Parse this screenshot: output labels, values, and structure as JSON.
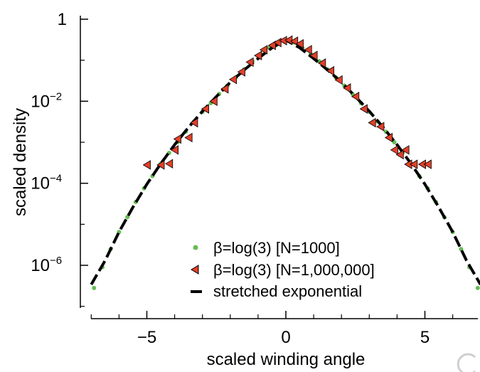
{
  "chart_data": {
    "type": "scatter",
    "title": "",
    "xlabel": "scaled winding angle",
    "ylabel": "scaled density",
    "xlim": [
      -7,
      7
    ],
    "ylim": [
      1e-07,
      1
    ],
    "y_scale": "log",
    "x_ticks": [
      {
        "value": -5,
        "label": "−5"
      },
      {
        "value": 0,
        "label": "0"
      },
      {
        "value": 5,
        "label": "5"
      }
    ],
    "y_ticks": [
      {
        "value": 1,
        "base": "1",
        "exp": ""
      },
      {
        "value": 0.01,
        "base": "10",
        "exp": "−2"
      },
      {
        "value": 0.0001,
        "base": "10",
        "exp": "−4"
      },
      {
        "value": 1e-06,
        "base": "10",
        "exp": "−6"
      }
    ],
    "grid": false,
    "legend_position": "bottom-right",
    "series": [
      {
        "name": "β=log(3) [N=1000]",
        "marker": "dot",
        "color": "#66bb55",
        "points": [
          [
            -6.9,
            2.8e-07
          ],
          [
            -6.6,
            9e-07
          ],
          [
            -6.3,
            2.5e-06
          ],
          [
            -6.0,
            6.5e-06
          ],
          [
            -5.7,
            1.5e-05
          ],
          [
            -5.4,
            3.5e-05
          ],
          [
            -5.1,
            7.5e-05
          ],
          [
            -4.8,
            0.00015
          ],
          [
            -4.5,
            0.0003
          ],
          [
            -4.2,
            0.00055
          ],
          [
            -3.9,
            0.001
          ],
          [
            -3.6,
            0.0018
          ],
          [
            -3.3,
            0.0032
          ],
          [
            -3.0,
            0.0055
          ],
          [
            -2.7,
            0.009
          ],
          [
            -2.4,
            0.015
          ],
          [
            -2.1,
            0.024
          ],
          [
            -1.8,
            0.038
          ],
          [
            -1.5,
            0.06
          ],
          [
            -1.2,
            0.095
          ],
          [
            -0.9,
            0.14
          ],
          [
            -0.6,
            0.2
          ],
          [
            -0.3,
            0.27
          ],
          [
            0.0,
            0.31
          ],
          [
            0.3,
            0.27
          ],
          [
            0.6,
            0.2
          ],
          [
            0.9,
            0.14
          ],
          [
            1.2,
            0.095
          ],
          [
            1.5,
            0.06
          ],
          [
            1.8,
            0.038
          ],
          [
            2.1,
            0.024
          ],
          [
            2.4,
            0.015
          ],
          [
            2.7,
            0.009
          ],
          [
            3.0,
            0.0055
          ],
          [
            3.3,
            0.0032
          ],
          [
            3.6,
            0.0018
          ],
          [
            3.9,
            0.001
          ],
          [
            4.2,
            0.00055
          ],
          [
            4.5,
            0.0003
          ],
          [
            4.8,
            0.00015
          ],
          [
            5.1,
            7.5e-05
          ],
          [
            5.4,
            3.5e-05
          ],
          [
            5.7,
            1.5e-05
          ],
          [
            6.0,
            6.5e-06
          ],
          [
            6.3,
            2.5e-06
          ],
          [
            6.6,
            9e-07
          ],
          [
            6.9,
            2.8e-07
          ]
        ]
      },
      {
        "name": "β=log(3) [N=1,000,000]",
        "marker": "left-triangle",
        "color": "#e0402a",
        "points": [
          [
            -5.0,
            0.00028
          ],
          [
            -4.5,
            0.00028
          ],
          [
            -4.2,
            0.0003
          ],
          [
            -4.0,
            0.00065
          ],
          [
            -3.9,
            0.0012
          ],
          [
            -3.5,
            0.0013
          ],
          [
            -3.3,
            0.003
          ],
          [
            -2.9,
            0.0065
          ],
          [
            -2.6,
            0.01
          ],
          [
            -2.2,
            0.02
          ],
          [
            -1.9,
            0.034
          ],
          [
            -1.6,
            0.052
          ],
          [
            -1.3,
            0.09
          ],
          [
            -1.0,
            0.13
          ],
          [
            -0.8,
            0.18
          ],
          [
            -0.5,
            0.23
          ],
          [
            -0.3,
            0.27
          ],
          [
            -0.1,
            0.3
          ],
          [
            0.1,
            0.31
          ],
          [
            0.3,
            0.29
          ],
          [
            0.5,
            0.25
          ],
          [
            0.8,
            0.18
          ],
          [
            1.0,
            0.13
          ],
          [
            1.3,
            0.085
          ],
          [
            1.6,
            0.055
          ],
          [
            1.9,
            0.033
          ],
          [
            2.2,
            0.021
          ],
          [
            2.5,
            0.013
          ],
          [
            2.8,
            0.0065
          ],
          [
            3.1,
            0.003
          ],
          [
            3.4,
            0.0024
          ],
          [
            3.7,
            0.0013
          ],
          [
            3.9,
            0.00065
          ],
          [
            4.1,
            0.0005
          ],
          [
            4.3,
            0.00065
          ],
          [
            4.4,
            0.00029
          ],
          [
            4.6,
            0.00029
          ],
          [
            4.9,
            0.00029
          ],
          [
            5.1,
            0.00029
          ]
        ]
      },
      {
        "name": "stretched exponential",
        "marker": "dashed-line",
        "color": "#000000",
        "points": [
          [
            -7.0,
            3.4e-07
          ],
          [
            -6.5,
            1.3e-06
          ],
          [
            -6.0,
            6.5e-06
          ],
          [
            -5.5,
            2.6e-05
          ],
          [
            -5.0,
            9.5e-05
          ],
          [
            -4.5,
            0.0003
          ],
          [
            -4.0,
            0.00087
          ],
          [
            -3.5,
            0.0023
          ],
          [
            -3.0,
            0.0057
          ],
          [
            -2.5,
            0.013
          ],
          [
            -2.0,
            0.029
          ],
          [
            -1.5,
            0.058
          ],
          [
            -1.0,
            0.11
          ],
          [
            -0.5,
            0.2
          ],
          [
            0.0,
            0.31
          ],
          [
            0.5,
            0.2
          ],
          [
            1.0,
            0.11
          ],
          [
            1.5,
            0.058
          ],
          [
            2.0,
            0.029
          ],
          [
            2.5,
            0.013
          ],
          [
            3.0,
            0.0057
          ],
          [
            3.5,
            0.0023
          ],
          [
            4.0,
            0.00087
          ],
          [
            4.5,
            0.0003
          ],
          [
            5.0,
            9.5e-05
          ],
          [
            5.5,
            2.6e-05
          ],
          [
            6.0,
            6.5e-06
          ],
          [
            6.5,
            1.3e-06
          ],
          [
            7.0,
            3.4e-07
          ]
        ]
      }
    ]
  }
}
